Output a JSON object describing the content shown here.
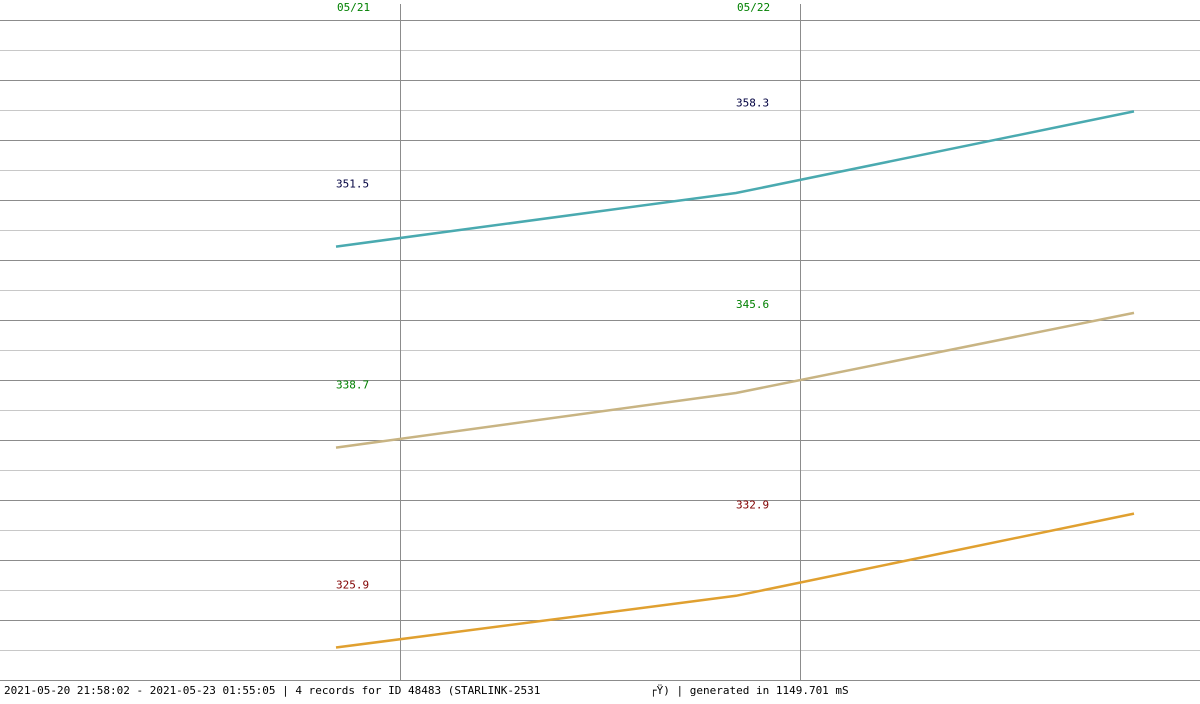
{
  "chart_data": {
    "type": "line",
    "x": [
      0.84,
      1.84,
      2.835
    ],
    "xlim": [
      0,
      3
    ],
    "xticks": [
      {
        "value": 1,
        "label": "05/21"
      },
      {
        "value": 2,
        "label": "05/22"
      }
    ],
    "series": [
      {
        "color": "#4aaab0",
        "label_color": "#000040",
        "values": [
          351.5,
          354.2,
          358.3
        ],
        "ylim": [
          329.7,
          362.9
        ]
      },
      {
        "color": "#c8b483",
        "label_color": "#008000",
        "values": [
          338.7,
          341.5,
          345.6
        ],
        "ylim": [
          326.8,
          360.6
        ]
      },
      {
        "color": "#e0a030",
        "label_color": "#800000",
        "values": [
          325.9,
          328.6,
          332.9
        ],
        "ylim": [
          324.2,
          358.7
        ]
      }
    ],
    "tick_color": "#008000",
    "footer_left": "2021-05-20 21:58:02 - 2021-05-23 01:55:05 | 4 records for ID 48483 (STARLINK-2531",
    "footer_right": "┌Ÿ) | generated in 1149.701 mS"
  }
}
